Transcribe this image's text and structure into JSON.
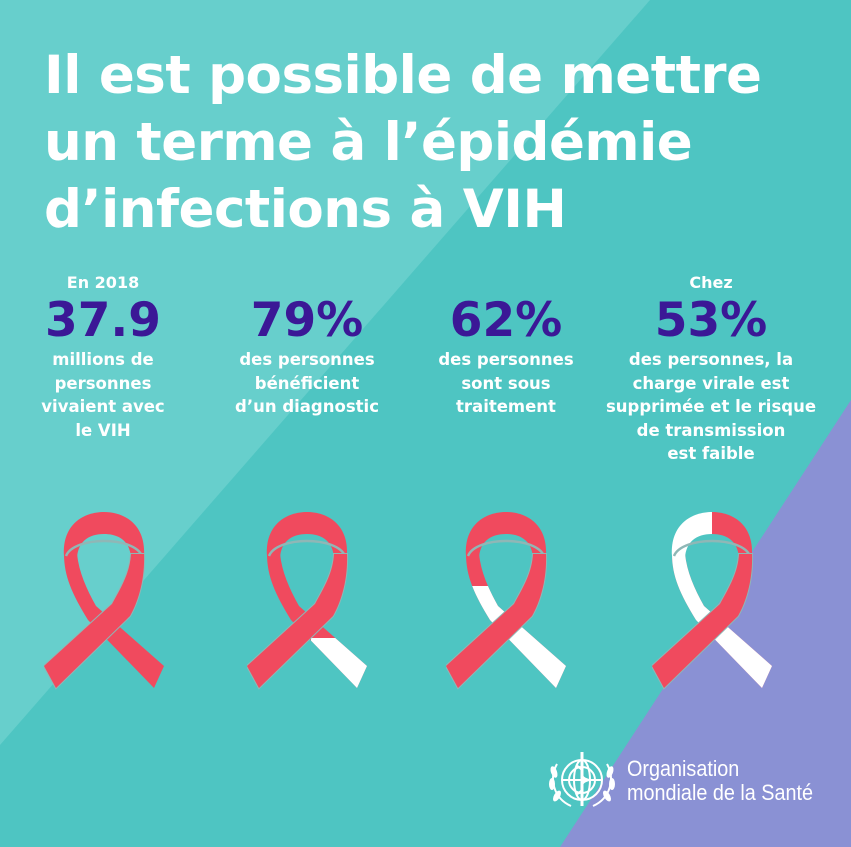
{
  "title": {
    "lines": [
      "Il est possible de mettre",
      "un terme à l’épidémie",
      "d’infections à VIH"
    ]
  },
  "colors": {
    "teal": "#4ec5c2",
    "teal_light": "#67cfcc",
    "purple": "#8a91d4",
    "ribbon_red": "#f04a5e",
    "ribbon_white": "#ffffff",
    "number": "#3b1896"
  },
  "stats": [
    {
      "pre": "En 2018",
      "value": "37.9",
      "desc": [
        "millions de",
        "personnes",
        "vivaient avec",
        "le VIH"
      ],
      "ribbon": "full-red"
    },
    {
      "pre": "",
      "value": "79%",
      "desc": [
        "des personnes",
        "bénéficient",
        "d’un diagnostic"
      ],
      "ribbon": "partial-white-tail"
    },
    {
      "pre": "",
      "value": "62%",
      "desc": [
        "des personnes",
        "sont sous",
        "traitement"
      ],
      "ribbon": "white-back-strand"
    },
    {
      "pre": "Chez",
      "value": "53%",
      "desc": [
        "des personnes, la",
        "charge virale est",
        "supprimée et le risque",
        "de transmission",
        "est faible"
      ],
      "ribbon": "half-white"
    }
  ],
  "logo": {
    "lines": [
      "Organisation",
      "mondiale de la Santé"
    ],
    "icon": "who-emblem-icon"
  }
}
